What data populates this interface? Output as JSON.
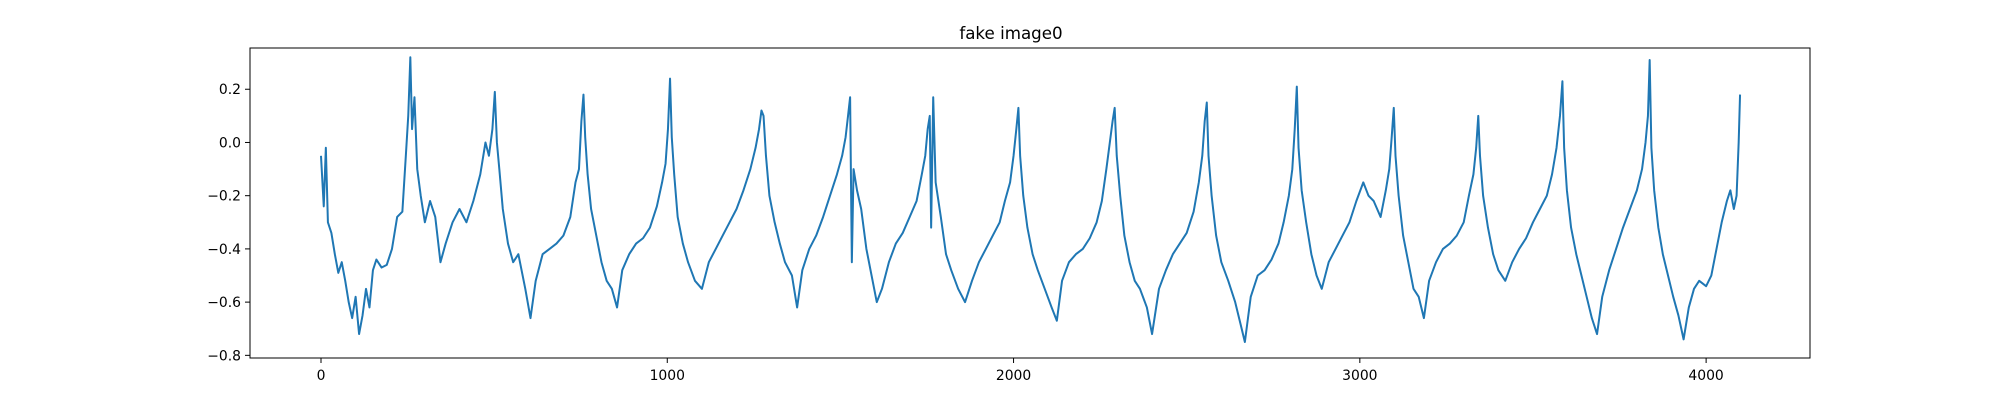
{
  "chart_data": {
    "type": "line",
    "title": "fake image0",
    "xlabel": "",
    "ylabel": "",
    "xlim": [
      -205,
      4300
    ],
    "ylim": [
      -0.81,
      0.355
    ],
    "xticks": [
      0,
      1000,
      2000,
      3000,
      4000
    ],
    "yticks": [
      0.2,
      0.0,
      -0.2,
      -0.4,
      -0.6,
      -0.8
    ],
    "xtick_labels": [
      "0",
      "1000",
      "2000",
      "3000",
      "4000"
    ],
    "ytick_labels": [
      "0.2",
      "0.0",
      "−0.2",
      "−0.4",
      "−0.6",
      "−0.8"
    ],
    "grid": false,
    "legend": "none",
    "series": [
      {
        "color": "#1f77b4",
        "points": [
          [
            0,
            -0.05
          ],
          [
            8,
            -0.24
          ],
          [
            14,
            -0.02
          ],
          [
            20,
            -0.3
          ],
          [
            30,
            -0.34
          ],
          [
            40,
            -0.42
          ],
          [
            50,
            -0.49
          ],
          [
            60,
            -0.45
          ],
          [
            70,
            -0.52
          ],
          [
            80,
            -0.6
          ],
          [
            90,
            -0.66
          ],
          [
            100,
            -0.58
          ],
          [
            110,
            -0.72
          ],
          [
            120,
            -0.65
          ],
          [
            130,
            -0.55
          ],
          [
            140,
            -0.62
          ],
          [
            150,
            -0.48
          ],
          [
            160,
            -0.44
          ],
          [
            175,
            -0.47
          ],
          [
            190,
            -0.46
          ],
          [
            205,
            -0.4
          ],
          [
            220,
            -0.28
          ],
          [
            235,
            -0.26
          ],
          [
            245,
            -0.05
          ],
          [
            252,
            0.1
          ],
          [
            258,
            0.32
          ],
          [
            263,
            0.05
          ],
          [
            270,
            0.17
          ],
          [
            278,
            -0.1
          ],
          [
            288,
            -0.2
          ],
          [
            300,
            -0.3
          ],
          [
            315,
            -0.22
          ],
          [
            330,
            -0.28
          ],
          [
            345,
            -0.45
          ],
          [
            360,
            -0.38
          ],
          [
            380,
            -0.3
          ],
          [
            400,
            -0.25
          ],
          [
            420,
            -0.3
          ],
          [
            440,
            -0.22
          ],
          [
            460,
            -0.12
          ],
          [
            475,
            0.0
          ],
          [
            485,
            -0.05
          ],
          [
            495,
            0.05
          ],
          [
            502,
            0.19
          ],
          [
            508,
            0.0
          ],
          [
            515,
            -0.1
          ],
          [
            525,
            -0.25
          ],
          [
            540,
            -0.38
          ],
          [
            555,
            -0.45
          ],
          [
            570,
            -0.42
          ],
          [
            590,
            -0.55
          ],
          [
            605,
            -0.66
          ],
          [
            620,
            -0.52
          ],
          [
            640,
            -0.42
          ],
          [
            660,
            -0.4
          ],
          [
            680,
            -0.38
          ],
          [
            700,
            -0.35
          ],
          [
            720,
            -0.28
          ],
          [
            735,
            -0.15
          ],
          [
            745,
            -0.1
          ],
          [
            752,
            0.08
          ],
          [
            758,
            0.18
          ],
          [
            763,
            0.02
          ],
          [
            770,
            -0.12
          ],
          [
            780,
            -0.25
          ],
          [
            795,
            -0.35
          ],
          [
            810,
            -0.45
          ],
          [
            825,
            -0.52
          ],
          [
            840,
            -0.55
          ],
          [
            855,
            -0.62
          ],
          [
            870,
            -0.48
          ],
          [
            890,
            -0.42
          ],
          [
            910,
            -0.38
          ],
          [
            930,
            -0.36
          ],
          [
            950,
            -0.32
          ],
          [
            970,
            -0.24
          ],
          [
            985,
            -0.15
          ],
          [
            995,
            -0.08
          ],
          [
            1002,
            0.05
          ],
          [
            1008,
            0.24
          ],
          [
            1013,
            0.02
          ],
          [
            1020,
            -0.12
          ],
          [
            1030,
            -0.28
          ],
          [
            1045,
            -0.38
          ],
          [
            1060,
            -0.45
          ],
          [
            1080,
            -0.52
          ],
          [
            1100,
            -0.55
          ],
          [
            1120,
            -0.45
          ],
          [
            1140,
            -0.4
          ],
          [
            1160,
            -0.35
          ],
          [
            1180,
            -0.3
          ],
          [
            1200,
            -0.25
          ],
          [
            1220,
            -0.18
          ],
          [
            1240,
            -0.1
          ],
          [
            1255,
            -0.02
          ],
          [
            1265,
            0.05
          ],
          [
            1272,
            0.12
          ],
          [
            1278,
            0.1
          ],
          [
            1285,
            -0.05
          ],
          [
            1295,
            -0.2
          ],
          [
            1310,
            -0.3
          ],
          [
            1325,
            -0.38
          ],
          [
            1340,
            -0.45
          ],
          [
            1360,
            -0.5
          ],
          [
            1375,
            -0.62
          ],
          [
            1390,
            -0.48
          ],
          [
            1410,
            -0.4
          ],
          [
            1430,
            -0.35
          ],
          [
            1450,
            -0.28
          ],
          [
            1470,
            -0.2
          ],
          [
            1490,
            -0.12
          ],
          [
            1505,
            -0.05
          ],
          [
            1515,
            0.02
          ],
          [
            1522,
            0.1
          ],
          [
            1528,
            0.17
          ],
          [
            1533,
            -0.45
          ],
          [
            1538,
            -0.1
          ],
          [
            1548,
            -0.18
          ],
          [
            1560,
            -0.25
          ],
          [
            1575,
            -0.4
          ],
          [
            1590,
            -0.5
          ],
          [
            1605,
            -0.6
          ],
          [
            1620,
            -0.55
          ],
          [
            1640,
            -0.45
          ],
          [
            1660,
            -0.38
          ],
          [
            1680,
            -0.34
          ],
          [
            1700,
            -0.28
          ],
          [
            1720,
            -0.22
          ],
          [
            1735,
            -0.12
          ],
          [
            1745,
            -0.05
          ],
          [
            1752,
            0.05
          ],
          [
            1758,
            0.1
          ],
          [
            1762,
            -0.32
          ],
          [
            1768,
            0.17
          ],
          [
            1775,
            -0.15
          ],
          [
            1790,
            -0.28
          ],
          [
            1805,
            -0.42
          ],
          [
            1820,
            -0.48
          ],
          [
            1840,
            -0.55
          ],
          [
            1860,
            -0.6
          ],
          [
            1880,
            -0.52
          ],
          [
            1900,
            -0.45
          ],
          [
            1920,
            -0.4
          ],
          [
            1940,
            -0.35
          ],
          [
            1960,
            -0.3
          ],
          [
            1975,
            -0.22
          ],
          [
            1990,
            -0.15
          ],
          [
            2000,
            -0.05
          ],
          [
            2008,
            0.05
          ],
          [
            2014,
            0.13
          ],
          [
            2019,
            -0.05
          ],
          [
            2028,
            -0.2
          ],
          [
            2040,
            -0.32
          ],
          [
            2055,
            -0.42
          ],
          [
            2070,
            -0.48
          ],
          [
            2090,
            -0.55
          ],
          [
            2110,
            -0.62
          ],
          [
            2125,
            -0.67
          ],
          [
            2140,
            -0.52
          ],
          [
            2160,
            -0.45
          ],
          [
            2180,
            -0.42
          ],
          [
            2200,
            -0.4
          ],
          [
            2220,
            -0.36
          ],
          [
            2240,
            -0.3
          ],
          [
            2255,
            -0.22
          ],
          [
            2268,
            -0.1
          ],
          [
            2278,
            0.0
          ],
          [
            2286,
            0.08
          ],
          [
            2292,
            0.13
          ],
          [
            2298,
            -0.05
          ],
          [
            2308,
            -0.2
          ],
          [
            2320,
            -0.35
          ],
          [
            2335,
            -0.45
          ],
          [
            2350,
            -0.52
          ],
          [
            2365,
            -0.55
          ],
          [
            2385,
            -0.62
          ],
          [
            2400,
            -0.72
          ],
          [
            2420,
            -0.55
          ],
          [
            2440,
            -0.48
          ],
          [
            2460,
            -0.42
          ],
          [
            2480,
            -0.38
          ],
          [
            2500,
            -0.34
          ],
          [
            2520,
            -0.26
          ],
          [
            2535,
            -0.15
          ],
          [
            2545,
            -0.05
          ],
          [
            2552,
            0.08
          ],
          [
            2558,
            0.15
          ],
          [
            2563,
            -0.05
          ],
          [
            2572,
            -0.2
          ],
          [
            2585,
            -0.35
          ],
          [
            2600,
            -0.45
          ],
          [
            2620,
            -0.52
          ],
          [
            2640,
            -0.6
          ],
          [
            2655,
            -0.68
          ],
          [
            2668,
            -0.75
          ],
          [
            2685,
            -0.58
          ],
          [
            2705,
            -0.5
          ],
          [
            2725,
            -0.48
          ],
          [
            2745,
            -0.44
          ],
          [
            2765,
            -0.38
          ],
          [
            2780,
            -0.3
          ],
          [
            2795,
            -0.2
          ],
          [
            2805,
            -0.1
          ],
          [
            2812,
            0.05
          ],
          [
            2818,
            0.21
          ],
          [
            2823,
            -0.02
          ],
          [
            2832,
            -0.18
          ],
          [
            2845,
            -0.3
          ],
          [
            2860,
            -0.42
          ],
          [
            2875,
            -0.5
          ],
          [
            2890,
            -0.55
          ],
          [
            2910,
            -0.45
          ],
          [
            2930,
            -0.4
          ],
          [
            2950,
            -0.35
          ],
          [
            2970,
            -0.3
          ],
          [
            2990,
            -0.22
          ],
          [
            3010,
            -0.15
          ],
          [
            3025,
            -0.2
          ],
          [
            3040,
            -0.22
          ],
          [
            3060,
            -0.28
          ],
          [
            3075,
            -0.18
          ],
          [
            3085,
            -0.1
          ],
          [
            3092,
            0.02
          ],
          [
            3098,
            0.13
          ],
          [
            3103,
            -0.05
          ],
          [
            3112,
            -0.2
          ],
          [
            3125,
            -0.35
          ],
          [
            3140,
            -0.45
          ],
          [
            3155,
            -0.55
          ],
          [
            3170,
            -0.58
          ],
          [
            3185,
            -0.66
          ],
          [
            3200,
            -0.52
          ],
          [
            3220,
            -0.45
          ],
          [
            3240,
            -0.4
          ],
          [
            3260,
            -0.38
          ],
          [
            3280,
            -0.35
          ],
          [
            3300,
            -0.3
          ],
          [
            3315,
            -0.2
          ],
          [
            3328,
            -0.12
          ],
          [
            3336,
            -0.02
          ],
          [
            3342,
            0.1
          ],
          [
            3347,
            -0.05
          ],
          [
            3356,
            -0.2
          ],
          [
            3370,
            -0.32
          ],
          [
            3385,
            -0.42
          ],
          [
            3400,
            -0.48
          ],
          [
            3420,
            -0.52
          ],
          [
            3440,
            -0.45
          ],
          [
            3460,
            -0.4
          ],
          [
            3480,
            -0.36
          ],
          [
            3500,
            -0.3
          ],
          [
            3520,
            -0.25
          ],
          [
            3540,
            -0.2
          ],
          [
            3555,
            -0.12
          ],
          [
            3568,
            -0.02
          ],
          [
            3578,
            0.1
          ],
          [
            3585,
            0.23
          ],
          [
            3590,
            -0.02
          ],
          [
            3598,
            -0.18
          ],
          [
            3610,
            -0.32
          ],
          [
            3625,
            -0.42
          ],
          [
            3640,
            -0.5
          ],
          [
            3655,
            -0.58
          ],
          [
            3670,
            -0.66
          ],
          [
            3685,
            -0.72
          ],
          [
            3700,
            -0.58
          ],
          [
            3720,
            -0.48
          ],
          [
            3740,
            -0.4
          ],
          [
            3760,
            -0.32
          ],
          [
            3780,
            -0.25
          ],
          [
            3800,
            -0.18
          ],
          [
            3815,
            -0.1
          ],
          [
            3825,
            0.0
          ],
          [
            3832,
            0.1
          ],
          [
            3837,
            0.31
          ],
          [
            3842,
            -0.02
          ],
          [
            3850,
            -0.18
          ],
          [
            3862,
            -0.32
          ],
          [
            3875,
            -0.42
          ],
          [
            3890,
            -0.5
          ],
          [
            3905,
            -0.58
          ],
          [
            3920,
            -0.65
          ],
          [
            3935,
            -0.74
          ],
          [
            3950,
            -0.62
          ],
          [
            3965,
            -0.55
          ],
          [
            3980,
            -0.52
          ],
          [
            4000,
            -0.54
          ],
          [
            4015,
            -0.5
          ],
          [
            4030,
            -0.4
          ],
          [
            4045,
            -0.3
          ],
          [
            4060,
            -0.22
          ],
          [
            4070,
            -0.18
          ],
          [
            4080,
            -0.25
          ],
          [
            4088,
            -0.2
          ],
          [
            4094,
            0.0
          ],
          [
            4098,
            0.18
          ]
        ]
      }
    ]
  }
}
